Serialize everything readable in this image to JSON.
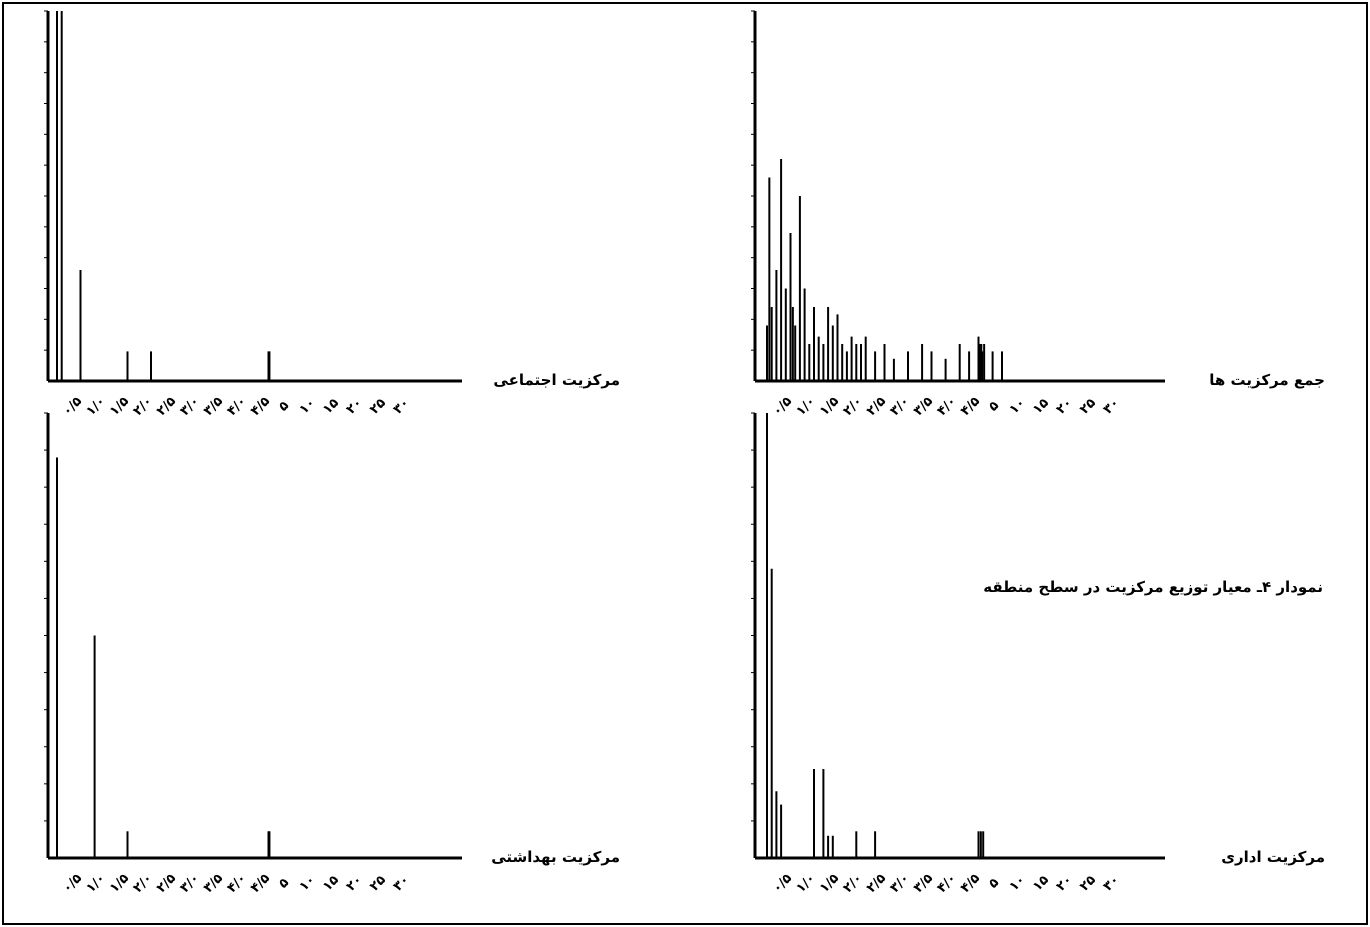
{
  "figure": {
    "title": "نمودار ۴ـ معیار توزیع مرکزیت در سطح منطقه"
  },
  "tick_labels": [
    "۰/۵",
    "۱/۰",
    "۱/۵",
    "۲/۰",
    "۲/۵",
    "۳/۰",
    "۳/۵",
    "۴/۰",
    "۴/۵",
    "۵",
    "۱۰",
    "۱۵",
    "۲۰",
    "۲۵",
    "۳۰"
  ],
  "colors": {
    "ink": "#000000",
    "paper": "#ffffff"
  },
  "chart_data": [
    {
      "id": "social",
      "type": "bar",
      "title": "مرکزیت اجتماعی",
      "xlabel": "مرکزیت اجتماعی",
      "ylabel": "",
      "grid": false,
      "x_scale": "categorical",
      "x": [
        0.5,
        0.6,
        1.0,
        2.0,
        2.5,
        5.0,
        5.2
      ],
      "values": [
        100,
        100,
        30,
        8,
        8,
        8,
        8
      ],
      "ylim": [
        0,
        100
      ]
    },
    {
      "id": "sum",
      "type": "bar",
      "title": "جمع مرکزیت ها",
      "xlabel": "جمع مرکزیت ها",
      "ylabel": "",
      "grid": false,
      "x_scale": "categorical",
      "x": [
        0.5,
        0.55,
        0.6,
        0.7,
        0.8,
        0.9,
        1.0,
        1.05,
        1.1,
        1.2,
        1.3,
        1.4,
        1.5,
        1.6,
        1.7,
        1.8,
        1.9,
        2.0,
        2.1,
        2.2,
        2.3,
        2.4,
        2.5,
        2.6,
        2.8,
        3.0,
        3.2,
        3.5,
        3.8,
        4.0,
        4.3,
        4.6,
        4.8,
        5.0,
        5.2,
        5.4,
        5.6,
        5.8,
        6.2,
        8.0,
        10.0
      ],
      "values": [
        15,
        55,
        20,
        30,
        60,
        25,
        40,
        20,
        15,
        50,
        25,
        10,
        20,
        12,
        10,
        20,
        15,
        18,
        10,
        8,
        12,
        10,
        10,
        12,
        8,
        10,
        6,
        8,
        10,
        8,
        6,
        10,
        8,
        12,
        10,
        8,
        10,
        8,
        10,
        8,
        8
      ],
      "ylim": [
        0,
        100
      ]
    },
    {
      "id": "health",
      "type": "bar",
      "title": "مرکزیت بهداشتی",
      "xlabel": "مرکزیت بهداشتی",
      "ylabel": "",
      "grid": false,
      "x_scale": "categorical",
      "x": [
        0.5,
        1.3,
        2.0,
        5.0,
        5.2
      ],
      "values": [
        90,
        50,
        6,
        6,
        6
      ],
      "ylim": [
        0,
        100
      ]
    },
    {
      "id": "administrative",
      "type": "bar",
      "title": "مرکزیت اداری",
      "xlabel": "مرکزیت اداری",
      "ylabel": "",
      "grid": false,
      "x_scale": "categorical",
      "x": [
        0.5,
        0.6,
        0.7,
        0.8,
        1.5,
        1.7,
        1.8,
        1.9,
        2.4,
        2.8,
        5.0,
        5.5,
        6.0
      ],
      "values": [
        100,
        65,
        15,
        12,
        20,
        20,
        5,
        5,
        6,
        6,
        6,
        6,
        6
      ],
      "ylim": [
        0,
        100
      ]
    }
  ]
}
